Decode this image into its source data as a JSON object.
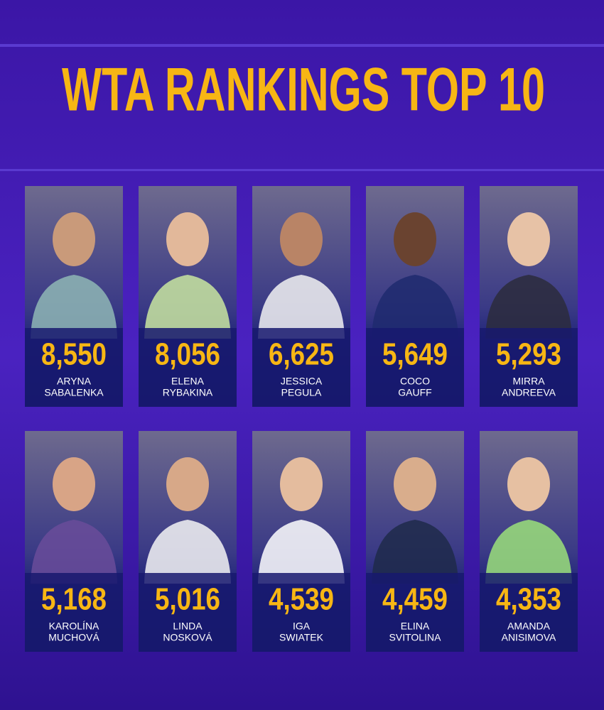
{
  "header": {
    "title": "WTA RANKINGS TOP 10"
  },
  "players": [
    {
      "points": "8,550",
      "first": "ARYNA",
      "last": "SABALENKA"
    },
    {
      "points": "8,056",
      "first": "ELENA",
      "last": "RYBAKINA"
    },
    {
      "points": "6,625",
      "first": "JESSICA",
      "last": "PEGULA"
    },
    {
      "points": "5,649",
      "first": "COCO",
      "last": "GAUFF"
    },
    {
      "points": "5,293",
      "first": "MIRRA",
      "last": "ANDREEVA"
    },
    {
      "points": "5,168",
      "first": "KAROLÍNA",
      "last": "MUCHOVÁ"
    },
    {
      "points": "5,016",
      "first": "LINDA",
      "last": "NOSKOVÁ"
    },
    {
      "points": "4,539",
      "first": "IGA",
      "last": "SWIATEK"
    },
    {
      "points": "4,459",
      "first": "ELINA",
      "last": "SVITOLINA"
    },
    {
      "points": "4,353",
      "first": "AMANDA",
      "last": "ANISIMOVA"
    }
  ]
}
